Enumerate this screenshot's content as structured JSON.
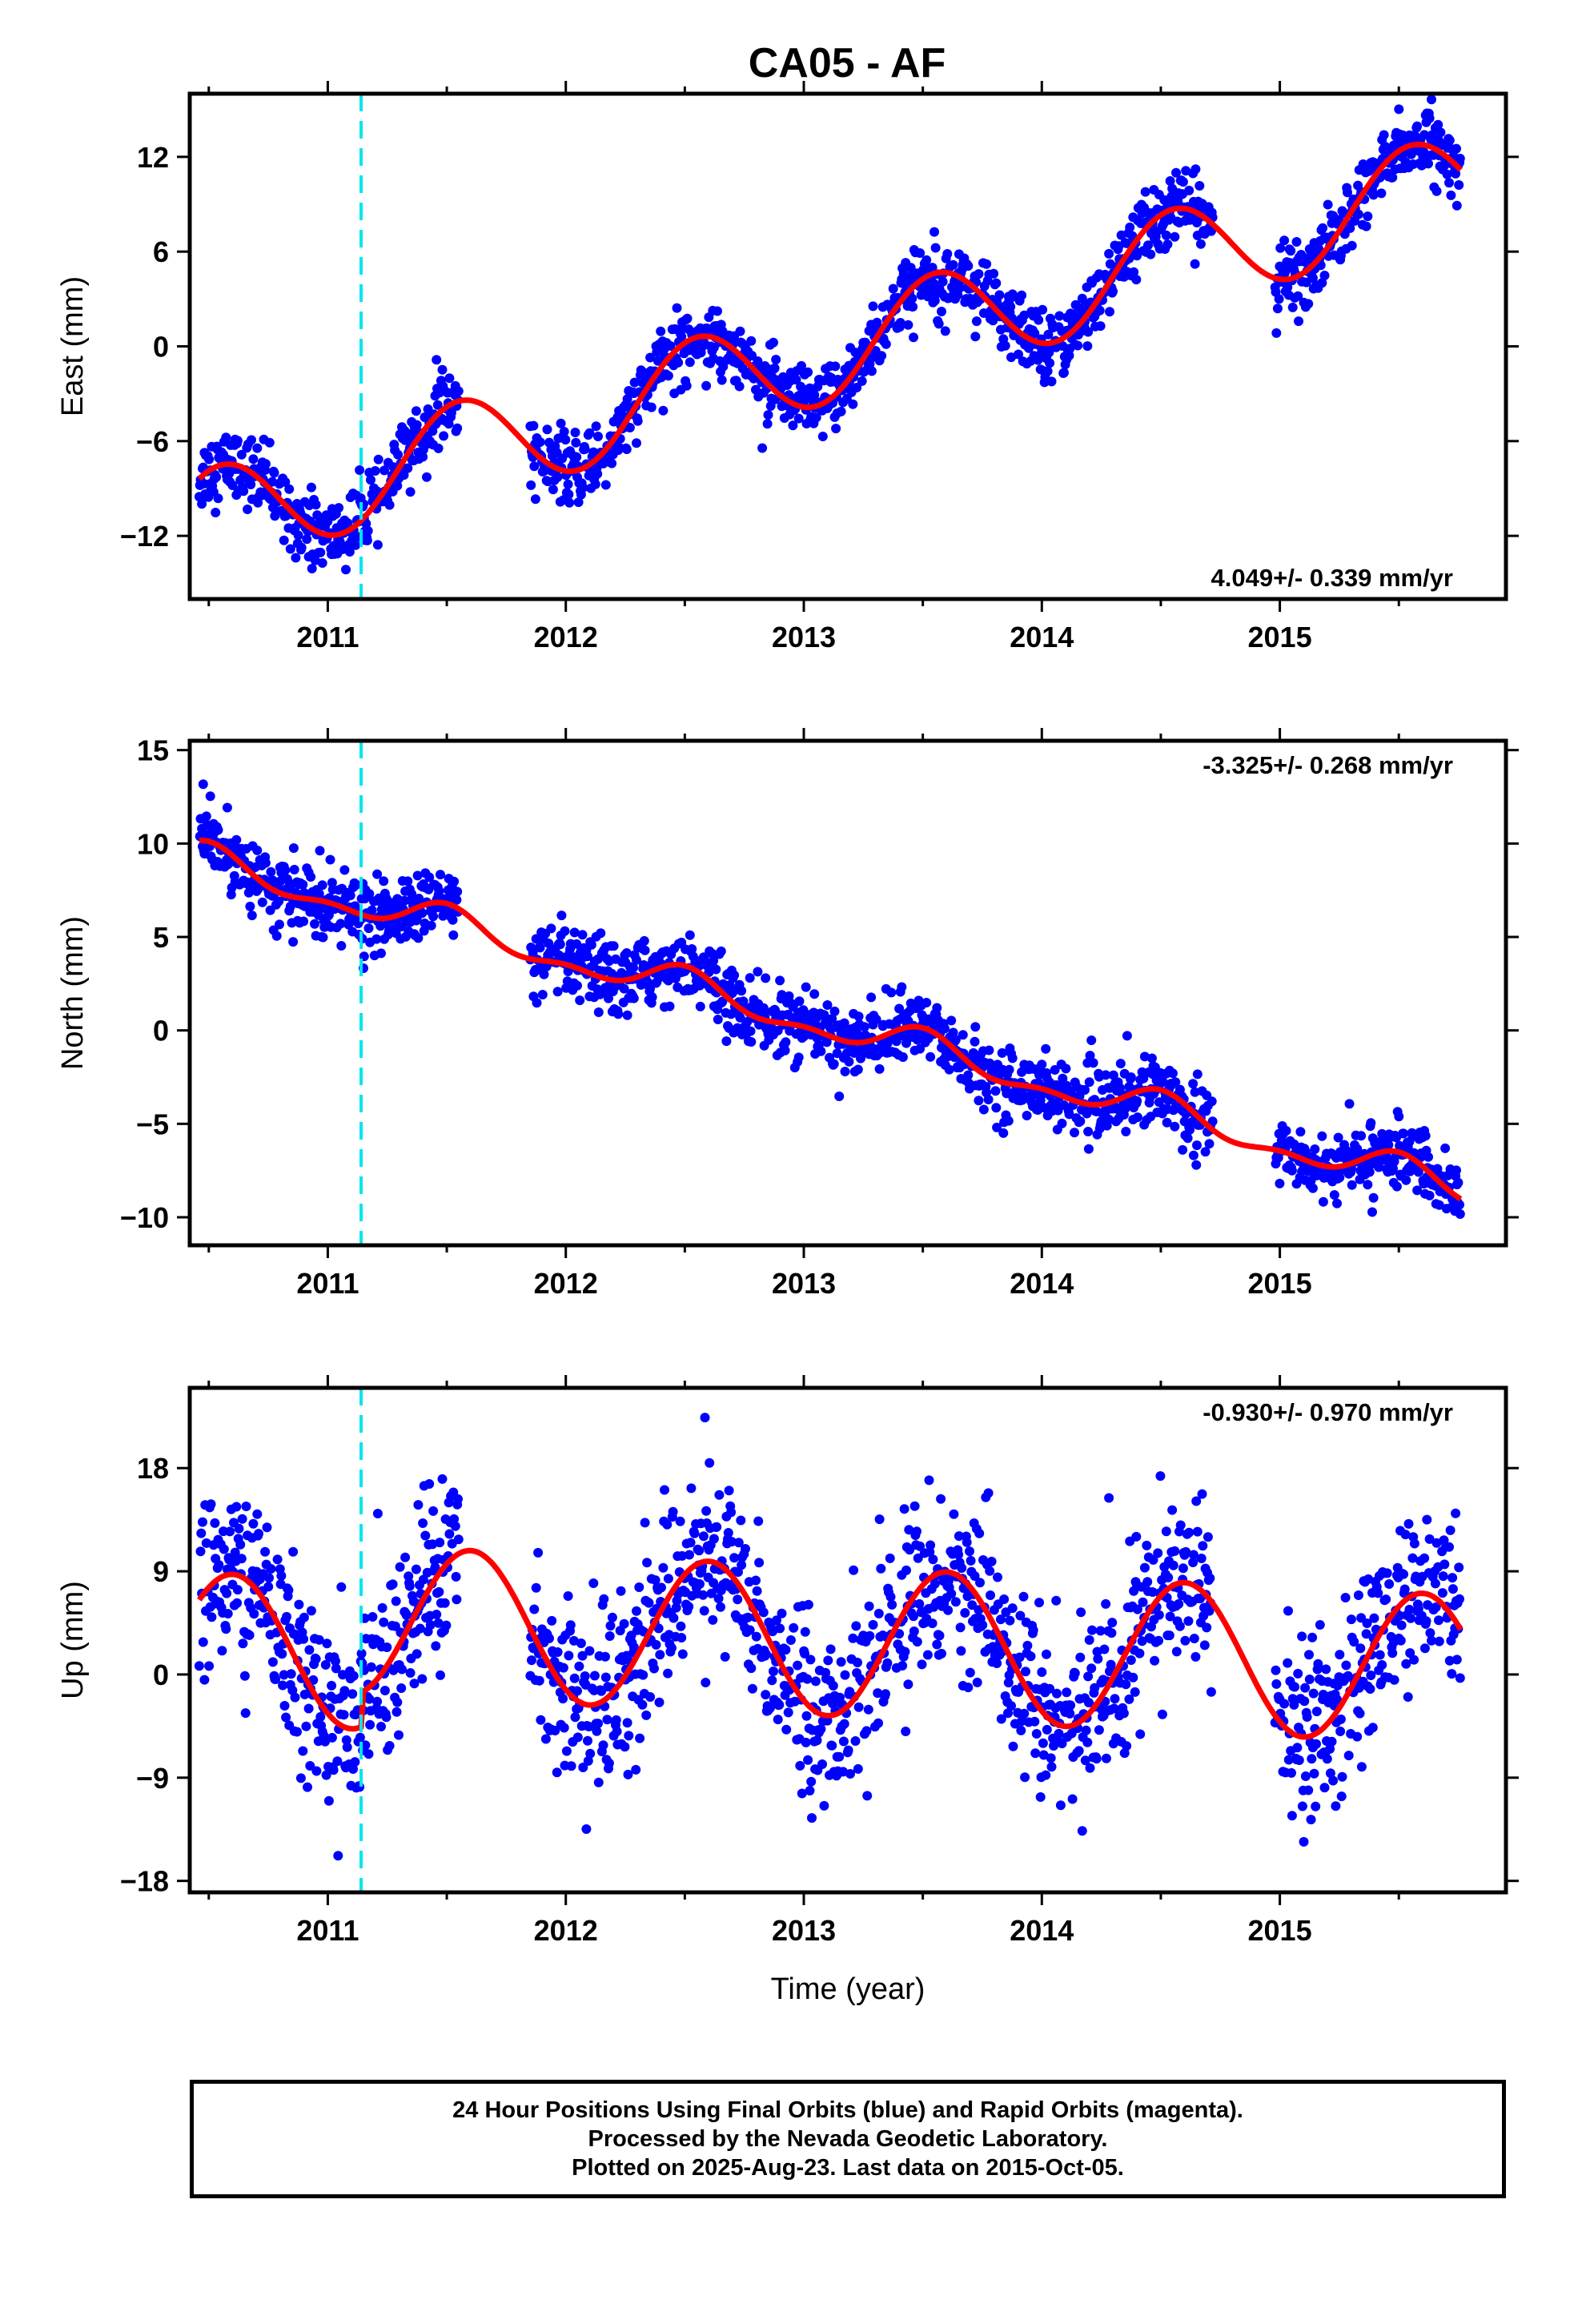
{
  "title": "CA05 - AF",
  "colors": {
    "data": "#0000ff",
    "fit": "#ff0000",
    "event": "#00e5ee"
  },
  "footer": {
    "line1": "24 Hour Positions Using Final Orbits (blue) and Rapid Orbits (magenta).",
    "line2": "Processed by the Nevada Geodetic Laboratory.",
    "line3": "Plotted on 2025-Aug-23. Last data on 2015-Oct-05."
  },
  "chart_data": [
    {
      "type": "scatter",
      "ylabel": "East (mm)",
      "xlabel": "",
      "rate_label": "4.049+/- 0.339 mm/yr",
      "rate_position": "bottom-right",
      "xlim": [
        2010.42,
        2015.95
      ],
      "ylim": [
        -16,
        16
      ],
      "yticks": [
        -12,
        -6,
        0,
        6,
        12
      ],
      "xticks": [
        2011,
        2012,
        2013,
        2014,
        2015
      ],
      "event_line_x": 2011.14,
      "fit": {
        "trend_rate": 4.049,
        "offset_at_2013": -0.8,
        "annual_amp": 3.2,
        "annual_peak": 0.55,
        "semiannual_amp": 0,
        "offset_step": 0
      },
      "gaps": [
        [
          2011.55,
          2011.85
        ],
        [
          2014.72,
          2014.98
        ]
      ],
      "series": [
        {
          "name": "Final Orbits",
          "noise": 1.1
        }
      ]
    },
    {
      "type": "scatter",
      "ylabel": "North (mm)",
      "xlabel": "",
      "rate_label": "-3.325+/- 0.268 mm/yr",
      "rate_position": "top-right",
      "xlim": [
        2010.42,
        2015.95
      ],
      "ylim": [
        -11.5,
        15.5
      ],
      "yticks": [
        -10,
        -5,
        0,
        5,
        10,
        15
      ],
      "xticks": [
        2011,
        2012,
        2013,
        2014,
        2015
      ],
      "event_line_x": 2011.14,
      "fit": {
        "trend_rate": -3.325,
        "offset_at_2013": 0.6,
        "annual_amp": 0.8,
        "annual_peak": 0.5,
        "semiannual_amp": 0.4,
        "offset_step": 0
      },
      "gaps": [
        [
          2011.55,
          2011.85
        ],
        [
          2014.72,
          2014.98
        ]
      ],
      "series": [
        {
          "name": "Final Orbits",
          "noise": 0.9
        }
      ]
    },
    {
      "type": "scatter",
      "ylabel": "Up (mm)",
      "xlabel": "Time (year)",
      "rate_label": "-0.930+/- 0.970 mm/yr",
      "rate_position": "top-right",
      "xlim": [
        2010.42,
        2015.95
      ],
      "ylim": [
        -19,
        25
      ],
      "yticks": [
        -18,
        -9,
        0,
        9,
        18
      ],
      "xticks": [
        2011,
        2012,
        2013,
        2014,
        2015
      ],
      "event_line_x": 2011.14,
      "fit": {
        "trend_rate": -0.93,
        "offset_at_2013": 0.0,
        "annual_amp": 6.5,
        "annual_peak": 0.6,
        "semiannual_amp": 0,
        "offset_step": 3.0
      },
      "gaps": [
        [
          2011.55,
          2011.85
        ],
        [
          2014.72,
          2014.98
        ]
      ],
      "series": [
        {
          "name": "Final Orbits",
          "noise": 3.8
        }
      ]
    }
  ]
}
